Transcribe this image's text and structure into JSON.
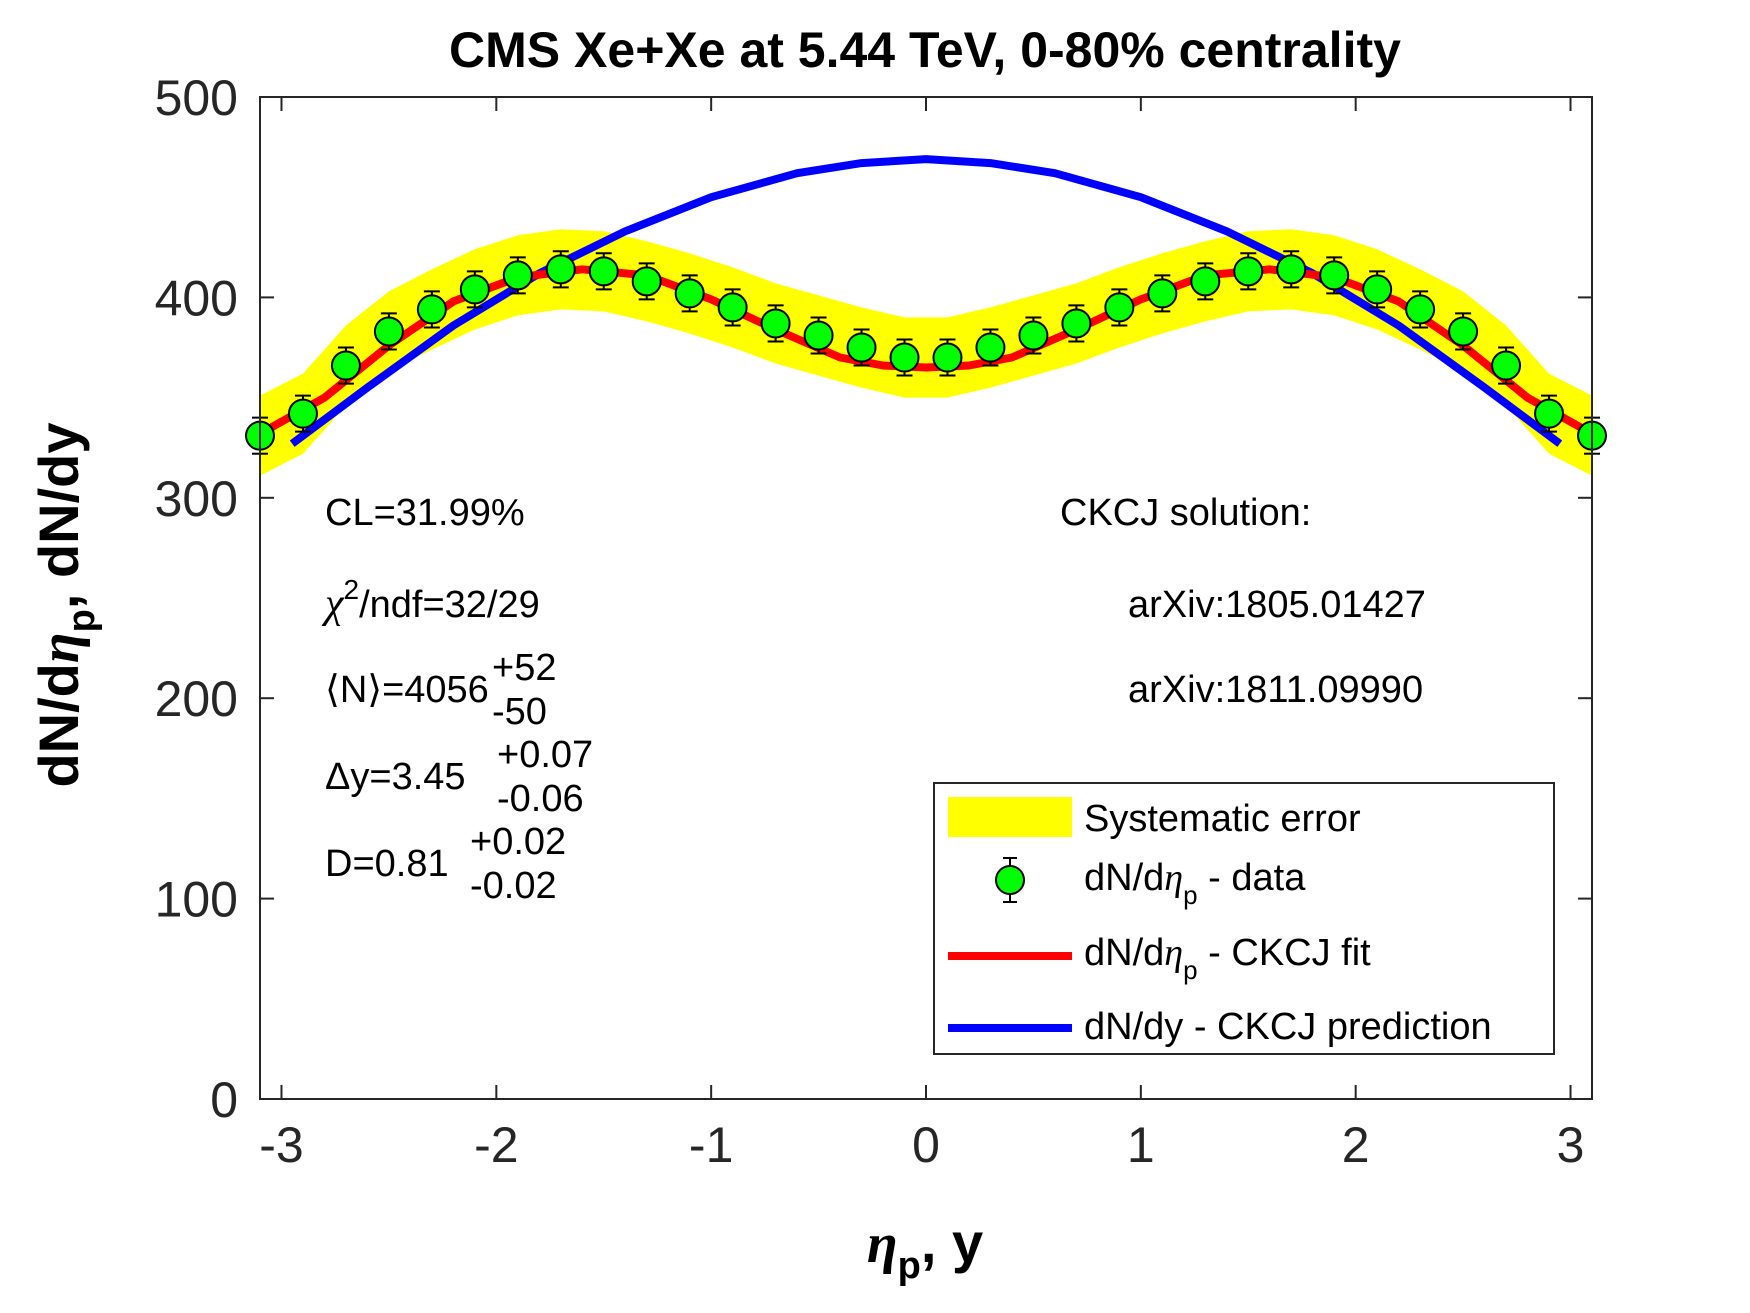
{
  "chart_data": {
    "type": "line",
    "title": "CMS Xe+Xe at 5.44 TeV, 0-80% centrality",
    "xlabel": "ηp, y",
    "ylabel": "dN/dηp, dN/dy",
    "xlim": [
      -3.1,
      3.1
    ],
    "ylim": [
      0,
      500
    ],
    "xticks": [
      -3,
      -2,
      -1,
      0,
      1,
      2,
      3
    ],
    "yticks": [
      0,
      100,
      200,
      300,
      400,
      500
    ],
    "data_x": [
      -3.1,
      -2.9,
      -2.7,
      -2.5,
      -2.3,
      -2.1,
      -1.9,
      -1.7,
      -1.5,
      -1.3,
      -1.1,
      -0.9,
      -0.7,
      -0.5,
      -0.3,
      -0.1,
      0.1,
      0.3,
      0.5,
      0.7,
      0.9,
      1.1,
      1.3,
      1.5,
      1.7,
      1.9,
      2.1,
      2.3,
      2.5,
      2.7,
      2.9,
      3.1
    ],
    "data_y": [
      331,
      342,
      366,
      383,
      394,
      404,
      411,
      414,
      413,
      408,
      402,
      395,
      387,
      381,
      375,
      370,
      370,
      375,
      381,
      387,
      395,
      402,
      408,
      413,
      414,
      411,
      404,
      394,
      383,
      366,
      342,
      331
    ],
    "stat_error": 9,
    "sys_error": 20,
    "fit": {
      "name": "dN/dηp - CKCJ fit",
      "x": [
        -3.1,
        -2.8,
        -2.5,
        -2.2,
        -1.9,
        -1.6,
        -1.3,
        -1.0,
        -0.7,
        -0.4,
        -0.2,
        0,
        0.2,
        0.4,
        0.7,
        1.0,
        1.3,
        1.6,
        1.9,
        2.2,
        2.5,
        2.8,
        3.1
      ],
      "y": [
        332,
        350,
        376,
        398,
        410,
        414,
        411,
        399,
        384,
        370,
        366,
        365,
        366,
        370,
        384,
        399,
        411,
        414,
        410,
        398,
        376,
        350,
        332
      ]
    },
    "prediction": {
      "name": "dN/dy - CKCJ prediction",
      "x": [
        -2.95,
        -2.6,
        -2.2,
        -1.8,
        -1.4,
        -1.0,
        -0.6,
        -0.3,
        0,
        0.3,
        0.6,
        1.0,
        1.4,
        1.8,
        2.2,
        2.6,
        2.95
      ],
      "y": [
        327,
        355,
        386,
        412,
        433,
        450,
        462,
        467,
        469,
        467,
        462,
        450,
        433,
        412,
        386,
        355,
        327
      ]
    }
  },
  "annotations": {
    "cl": "CL=31.99%",
    "chi_sym": "χ",
    "chi_sup": "2",
    "chi_rest": "/ndf=32/29",
    "n_base": "⟨N⟩=4056",
    "n_up": "+52",
    "n_down": "-50",
    "dy_base": "Δy=3.45",
    "dy_up": "+0.07",
    "dy_down": "-0.06",
    "d_base": "D=0.81",
    "d_up": "+0.02",
    "d_down": "-0.02",
    "solution_title": "CKCJ solution:",
    "ref1": "arXiv:1805.01427",
    "ref2": "arXiv:1811.09990"
  },
  "legend": {
    "systematic": "Systematic error",
    "data_prefix": "dN/d",
    "data_sym": "η",
    "data_sub": "p",
    "data_suffix": " - data",
    "fit_prefix": "dN/d",
    "fit_sym": "η",
    "fit_sub": "p",
    "fit_suffix": " - CKCJ fit",
    "prediction": "dN/dy - CKCJ prediction"
  },
  "axis": {
    "x_sym": "η",
    "x_sub": "p",
    "x_rest": ", y",
    "y_pre": "dN/d",
    "y_sym": "η",
    "y_sub": "p",
    "y_rest": ", dN/dy"
  },
  "colors": {
    "band": "#ffff00",
    "marker": "#00ff00",
    "fit": "#ff0000",
    "prediction": "#0000ff",
    "axis": "#262626"
  }
}
